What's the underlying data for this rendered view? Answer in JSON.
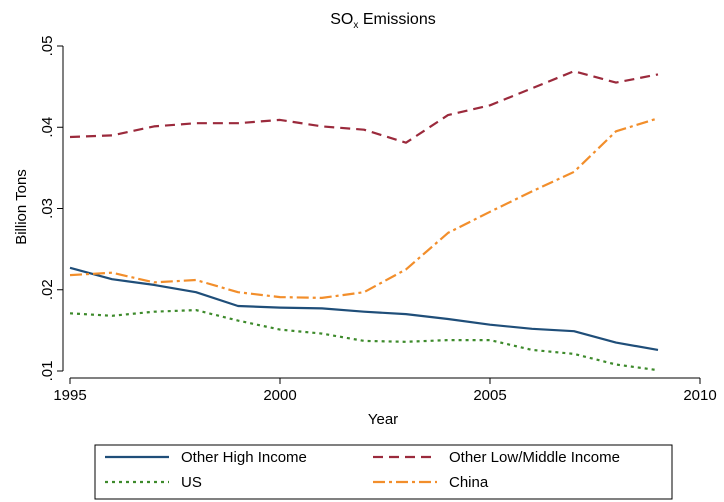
{
  "chart_data": {
    "type": "line",
    "title": "SO",
    "title_subscript": "x",
    "title_suffix": " Emissions",
    "xlabel": "Year",
    "ylabel": "Billion Tons",
    "xlim": [
      1995,
      2010
    ],
    "ylim": [
      0.01,
      0.05
    ],
    "x_ticks": [
      1995,
      2000,
      2005,
      2010
    ],
    "x_tick_labels": [
      "1995",
      "2000",
      "2005",
      "2010"
    ],
    "y_ticks": [
      0.01,
      0.02,
      0.03,
      0.04,
      0.05
    ],
    "y_tick_labels": [
      ".01",
      ".02",
      ".03",
      ".04",
      ".05"
    ],
    "grid": false,
    "legend_position": "bottom",
    "x": [
      1995,
      1996,
      1997,
      1998,
      1999,
      2000,
      2001,
      2002,
      2003,
      2004,
      2005,
      2006,
      2007,
      2008,
      2009
    ],
    "series": [
      {
        "name": "Other High Income",
        "color": "#1f4e79",
        "dash": "solid",
        "values": [
          0.0227,
          0.0213,
          0.0206,
          0.0197,
          0.018,
          0.0178,
          0.0177,
          0.0173,
          0.017,
          0.0164,
          0.0157,
          0.0152,
          0.0149,
          0.0135,
          0.0126
        ]
      },
      {
        "name": "Other Low/Middle Income",
        "color": "#9b2a3c",
        "dash": "dash",
        "values": [
          0.0388,
          0.039,
          0.0401,
          0.0405,
          0.0405,
          0.0409,
          0.0401,
          0.0397,
          0.0381,
          0.0415,
          0.0427,
          0.0448,
          0.0469,
          0.0455,
          0.0465
        ]
      },
      {
        "name": "US",
        "color": "#3d8a2b",
        "dash": "dot",
        "values": [
          0.0171,
          0.0168,
          0.0173,
          0.0175,
          0.0162,
          0.0151,
          0.0146,
          0.0137,
          0.0136,
          0.0138,
          0.0138,
          0.0126,
          0.0121,
          0.0108,
          0.0101
        ]
      },
      {
        "name": "China",
        "color": "#f28e2b",
        "dash": "dashdot",
        "values": [
          0.0218,
          0.0221,
          0.0209,
          0.0212,
          0.0197,
          0.0191,
          0.019,
          0.0197,
          0.0225,
          0.027,
          0.0296,
          0.0321,
          0.0345,
          0.0395,
          0.0411
        ]
      }
    ]
  }
}
